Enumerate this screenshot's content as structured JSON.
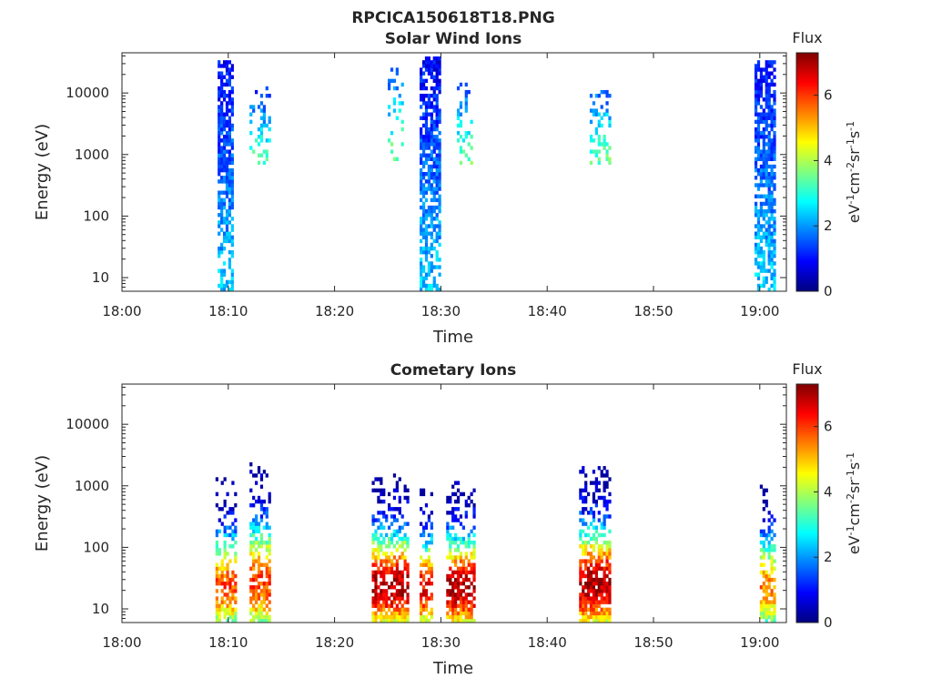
{
  "figure_title": "RPCICA150618T18.PNG",
  "colormap": [
    "#00007f",
    "#0000ff",
    "#007fff",
    "#00ffff",
    "#7fff7f",
    "#ffff00",
    "#ff7f00",
    "#ff0000",
    "#7f0000"
  ],
  "chart_data": [
    {
      "type": "heatmap",
      "title": "Solar Wind Ions",
      "xlabel": "Time",
      "ylabel": "Energy (eV)",
      "x_ticks": [
        "18:00",
        "18:10",
        "18:20",
        "18:30",
        "18:40",
        "18:50",
        "19:00"
      ],
      "x_range_minutes": [
        0,
        62.5
      ],
      "y_scale": "log",
      "y_ticks": [
        10,
        100,
        1000,
        10000
      ],
      "y_range": [
        6,
        45000
      ],
      "colorbar": {
        "title": "Flux",
        "label": "eV-1cm-2sr-1s-1",
        "ticks": [
          0,
          2,
          4,
          6
        ],
        "range": [
          0,
          7.3
        ]
      },
      "bursts": [
        {
          "start_min": 9.0,
          "end_min": 10.5,
          "e_min": 6,
          "e_max": 35000,
          "flux_peak": 1.5,
          "density": 0.85
        },
        {
          "start_min": 12.0,
          "end_min": 14.0,
          "e_min": 600,
          "e_max": 12000,
          "flux_peak": 2.2,
          "density": 0.25
        },
        {
          "start_min": 25.0,
          "end_min": 26.5,
          "e_min": 600,
          "e_max": 25000,
          "flux_peak": 2.4,
          "density": 0.25
        },
        {
          "start_min": 28.0,
          "end_min": 29.8,
          "e_min": 6,
          "e_max": 40000,
          "flux_peak": 1.5,
          "density": 0.85
        },
        {
          "start_min": 31.5,
          "end_min": 33.0,
          "e_min": 600,
          "e_max": 15000,
          "flux_peak": 2.3,
          "density": 0.3
        },
        {
          "start_min": 44.0,
          "end_min": 46.0,
          "e_min": 700,
          "e_max": 15000,
          "flux_peak": 2.2,
          "density": 0.35
        },
        {
          "start_min": 59.5,
          "end_min": 61.5,
          "e_min": 6,
          "e_max": 35000,
          "flux_peak": 1.5,
          "density": 0.85
        }
      ]
    },
    {
      "type": "heatmap",
      "title": "Cometary Ions",
      "xlabel": "Time",
      "ylabel": "Energy (eV)",
      "x_ticks": [
        "18:00",
        "18:10",
        "18:20",
        "18:30",
        "18:40",
        "18:50",
        "19:00"
      ],
      "x_range_minutes": [
        0,
        62.5
      ],
      "y_scale": "log",
      "y_ticks": [
        10,
        100,
        1000,
        10000
      ],
      "y_range": [
        6,
        45000
      ],
      "colorbar": {
        "title": "Flux",
        "label": "eV-1cm-2sr-1s-1",
        "ticks": [
          0,
          2,
          4,
          6
        ],
        "range": [
          0,
          7.3
        ]
      },
      "bursts": [
        {
          "start_min": 8.8,
          "end_min": 10.8,
          "e_min": 6,
          "e_max": 1400,
          "flux_peak": 5.8,
          "density": 0.8
        },
        {
          "start_min": 12.0,
          "end_min": 14.0,
          "e_min": 6,
          "e_max": 2500,
          "flux_peak": 6.0,
          "density": 0.8
        },
        {
          "start_min": 23.5,
          "end_min": 26.8,
          "e_min": 6,
          "e_max": 1500,
          "flux_peak": 7.0,
          "density": 0.9
        },
        {
          "start_min": 28.0,
          "end_min": 29.2,
          "e_min": 6,
          "e_max": 1000,
          "flux_peak": 6.5,
          "density": 0.8
        },
        {
          "start_min": 30.5,
          "end_min": 33.2,
          "e_min": 6,
          "e_max": 1200,
          "flux_peak": 7.0,
          "density": 0.9
        },
        {
          "start_min": 43.0,
          "end_min": 46.0,
          "e_min": 6,
          "e_max": 2000,
          "flux_peak": 7.0,
          "density": 0.9
        },
        {
          "start_min": 60.0,
          "end_min": 61.5,
          "e_min": 6,
          "e_max": 1200,
          "flux_peak": 5.5,
          "density": 0.8
        }
      ]
    }
  ]
}
